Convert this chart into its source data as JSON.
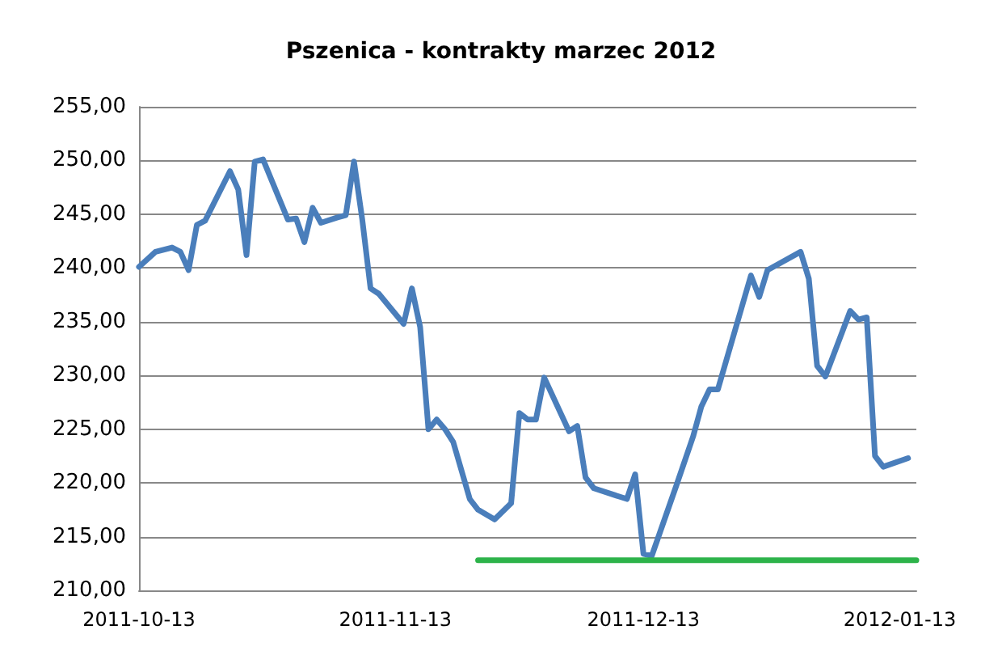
{
  "chart_data": {
    "type": "line",
    "title": "Pszenica - kontrakty marzec 2012",
    "xlim": [
      "2011-10-13",
      "2012-01-15"
    ],
    "xticks": [
      "2011-10-13",
      "2011-11-13",
      "2011-12-13",
      "2012-01-13"
    ],
    "ylim": [
      210,
      255
    ],
    "yticks": [
      {
        "value": 210,
        "label": "210,00"
      },
      {
        "value": 215,
        "label": "215,00"
      },
      {
        "value": 220,
        "label": "220,00"
      },
      {
        "value": 225,
        "label": "225,00"
      },
      {
        "value": 230,
        "label": "230,00"
      },
      {
        "value": 235,
        "label": "235,00"
      },
      {
        "value": 240,
        "label": "240,00"
      },
      {
        "value": 245,
        "label": "245,00"
      },
      {
        "value": 250,
        "label": "250,00"
      },
      {
        "value": 255,
        "label": "255,00"
      }
    ],
    "grid": "y",
    "marker": "none",
    "line_style": "solid",
    "series": [
      {
        "color": "#4a7ebb",
        "x": [
          "2011-10-13",
          "2011-10-15",
          "2011-10-17",
          "2011-10-18",
          "2011-10-19",
          "2011-10-20",
          "2011-10-21",
          "2011-10-24",
          "2011-10-25",
          "2011-10-26",
          "2011-10-27",
          "2011-10-28",
          "2011-10-31",
          "2011-11-01",
          "2011-11-02",
          "2011-11-03",
          "2011-11-04",
          "2011-11-06",
          "2011-11-07",
          "2011-11-08",
          "2011-11-09",
          "2011-11-10",
          "2011-11-11",
          "2011-11-14",
          "2011-11-15",
          "2011-11-16",
          "2011-11-17",
          "2011-11-18",
          "2011-11-19",
          "2011-11-20",
          "2011-11-22",
          "2011-11-23",
          "2011-11-25",
          "2011-11-27",
          "2011-11-28",
          "2011-11-29",
          "2011-11-30",
          "2011-12-01",
          "2011-12-04",
          "2011-12-05",
          "2011-12-06",
          "2011-12-07",
          "2011-12-11",
          "2011-12-12",
          "2011-12-13",
          "2011-12-14",
          "2011-12-17",
          "2011-12-19",
          "2011-12-20",
          "2011-12-21",
          "2011-12-22",
          "2011-12-26",
          "2011-12-27",
          "2011-12-28",
          "2012-01-01",
          "2012-01-02",
          "2012-01-03",
          "2012-01-04",
          "2012-01-07",
          "2012-01-08",
          "2012-01-09",
          "2012-01-10",
          "2012-01-11",
          "2012-01-14"
        ],
        "values": [
          240.1,
          241.5,
          241.9,
          241.5,
          239.8,
          244.0,
          244.4,
          249.0,
          247.3,
          241.2,
          249.9,
          250.1,
          244.5,
          244.6,
          242.4,
          245.6,
          244.2,
          244.7,
          244.9,
          249.9,
          244.5,
          238.1,
          237.6,
          234.8,
          238.1,
          234.5,
          225.0,
          225.9,
          225.0,
          223.8,
          218.5,
          217.5,
          216.6,
          218.1,
          226.5,
          225.9,
          225.9,
          229.8,
          224.8,
          225.3,
          220.5,
          219.5,
          218.5,
          220.8,
          213.4,
          213.2,
          219.8,
          224.3,
          227.1,
          228.7,
          228.7,
          239.3,
          237.3,
          239.8,
          241.5,
          239.0,
          230.9,
          229.9,
          236.0,
          235.2,
          235.4,
          222.5,
          221.5,
          222.3
        ]
      },
      {
        "color": "#2db34a",
        "x": [
          "2011-11-23",
          "2012-01-15"
        ],
        "values": [
          212.8,
          212.8
        ]
      }
    ]
  }
}
